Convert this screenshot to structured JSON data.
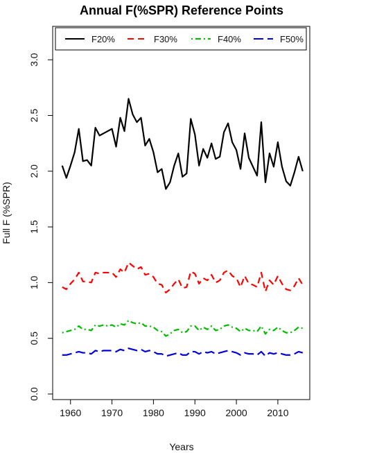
{
  "chart_data": {
    "type": "line",
    "title": "Annual F(%SPR) Reference Points",
    "xlabel": "Years",
    "ylabel": "Full F (%SPR)",
    "xlim": [
      1955.7,
      2017.7
    ],
    "ylim": [
      -0.05,
      3.3
    ],
    "xticks": [
      1960,
      1970,
      1980,
      1990,
      2000,
      2010
    ],
    "yticks": [
      0.0,
      0.5,
      1.0,
      1.5,
      2.0,
      2.5,
      3.0
    ],
    "xtick_labels": [
      "1960",
      "1970",
      "1980",
      "1990",
      "2000",
      "2010"
    ],
    "ytick_labels": [
      "0.0",
      "0.5",
      "1.0",
      "1.5",
      "2.0",
      "2.5",
      "3.0"
    ],
    "legend_position": "top",
    "grid": false,
    "x": [
      1958,
      1959,
      1960,
      1961,
      1962,
      1963,
      1964,
      1965,
      1966,
      1967,
      1968,
      1969,
      1970,
      1971,
      1972,
      1973,
      1974,
      1975,
      1976,
      1977,
      1978,
      1979,
      1980,
      1981,
      1982,
      1983,
      1984,
      1985,
      1986,
      1987,
      1988,
      1989,
      1990,
      1991,
      1992,
      1993,
      1994,
      1995,
      1996,
      1997,
      1998,
      1999,
      2000,
      2001,
      2002,
      2003,
      2004,
      2005,
      2006,
      2007,
      2008,
      2009,
      2010,
      2011,
      2012,
      2013,
      2014,
      2015,
      2016
    ],
    "series": [
      {
        "name": "F20%",
        "color": "#000000",
        "dash": "solid",
        "values": [
          2.05,
          1.94,
          2.05,
          2.17,
          2.38,
          2.09,
          2.1,
          2.05,
          2.39,
          2.32,
          2.34,
          2.36,
          2.38,
          2.22,
          2.48,
          2.36,
          2.65,
          2.51,
          2.44,
          2.48,
          2.23,
          2.29,
          2.17,
          1.99,
          2.02,
          1.84,
          1.9,
          2.05,
          2.16,
          1.95,
          1.98,
          2.47,
          2.33,
          2.05,
          2.2,
          2.12,
          2.25,
          2.11,
          2.13,
          2.35,
          2.43,
          2.26,
          2.19,
          2.02,
          2.34,
          2.12,
          2.04,
          1.96,
          2.44,
          1.9,
          2.16,
          2.04,
          2.26,
          2.04,
          1.91,
          1.87,
          1.99,
          2.13,
          2.0
        ]
      },
      {
        "name": "F30%",
        "color": "#ff0000",
        "dash": "dashed",
        "values": [
          0.96,
          0.94,
          0.99,
          1.03,
          1.09,
          1.01,
          1.01,
          1.0,
          1.09,
          1.08,
          1.09,
          1.09,
          1.09,
          1.05,
          1.12,
          1.09,
          1.18,
          1.15,
          1.12,
          1.14,
          1.07,
          1.08,
          1.05,
          0.99,
          0.98,
          0.91,
          0.94,
          0.99,
          1.03,
          0.95,
          0.96,
          1.1,
          1.08,
          0.99,
          1.04,
          1.02,
          1.07,
          1.0,
          1.02,
          1.09,
          1.11,
          1.06,
          1.04,
          0.96,
          1.06,
          0.99,
          0.98,
          0.96,
          1.09,
          0.92,
          1.02,
          0.98,
          1.06,
          0.99,
          0.94,
          0.93,
          0.97,
          1.04,
          0.98
        ]
      },
      {
        "name": "F40%",
        "color": "#00bb00",
        "dash": "dotdash",
        "values": [
          0.55,
          0.56,
          0.57,
          0.58,
          0.61,
          0.58,
          0.58,
          0.57,
          0.62,
          0.61,
          0.62,
          0.61,
          0.62,
          0.6,
          0.63,
          0.62,
          0.66,
          0.64,
          0.63,
          0.64,
          0.61,
          0.61,
          0.6,
          0.57,
          0.56,
          0.52,
          0.54,
          0.57,
          0.58,
          0.55,
          0.56,
          0.61,
          0.61,
          0.57,
          0.6,
          0.58,
          0.61,
          0.57,
          0.58,
          0.61,
          0.62,
          0.6,
          0.59,
          0.56,
          0.59,
          0.57,
          0.57,
          0.56,
          0.61,
          0.54,
          0.58,
          0.57,
          0.6,
          0.57,
          0.55,
          0.55,
          0.57,
          0.6,
          0.59
        ]
      },
      {
        "name": "F50%",
        "color": "#0000dd",
        "dash": "longdash",
        "values": [
          0.35,
          0.35,
          0.36,
          0.37,
          0.38,
          0.37,
          0.37,
          0.36,
          0.39,
          0.38,
          0.39,
          0.39,
          0.39,
          0.38,
          0.4,
          0.39,
          0.41,
          0.4,
          0.39,
          0.4,
          0.38,
          0.39,
          0.38,
          0.36,
          0.36,
          0.34,
          0.35,
          0.36,
          0.37,
          0.35,
          0.35,
          0.38,
          0.38,
          0.36,
          0.38,
          0.37,
          0.38,
          0.36,
          0.37,
          0.38,
          0.39,
          0.38,
          0.37,
          0.35,
          0.37,
          0.36,
          0.36,
          0.35,
          0.38,
          0.34,
          0.37,
          0.36,
          0.37,
          0.36,
          0.35,
          0.35,
          0.36,
          0.38,
          0.37
        ]
      }
    ]
  }
}
